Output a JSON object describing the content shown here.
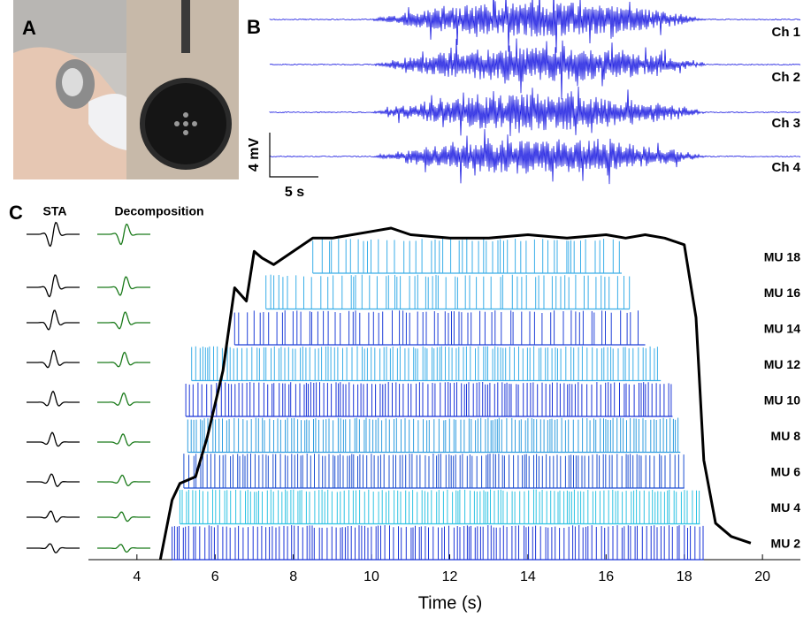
{
  "panel_labels": [
    "A",
    "B",
    "C"
  ],
  "panel_b": {
    "channels": [
      "Ch 1",
      "Ch 2",
      "Ch 3",
      "Ch 4"
    ],
    "scale_amplitude": "4 mV",
    "scale_time": "5 s"
  },
  "panel_c": {
    "sta_title": "STA",
    "decomposition_title": "Decomposition"
  },
  "chart_data": {
    "type": "line",
    "x_label": "Time (s)",
    "xlim": [
      2.76,
      20.97
    ],
    "xticks": [
      4,
      6,
      8,
      10,
      12,
      14,
      16,
      18,
      20
    ],
    "ylim": [
      0,
      100
    ],
    "force": {
      "color": "#000000",
      "x": [
        4.6,
        4.9,
        5.1,
        5.5,
        5.8,
        6.2,
        6.5,
        6.8,
        7.0,
        7.2,
        7.5,
        8,
        8.5,
        9,
        10,
        10.5,
        11,
        12,
        13,
        14,
        15,
        16,
        16.5,
        17,
        17.5,
        18,
        18.3,
        18.5,
        18.8,
        19.2,
        19.7
      ],
      "values": [
        0,
        18,
        23,
        25,
        37,
        57,
        82,
        78,
        93,
        91,
        89,
        93,
        97,
        97,
        99,
        100,
        98,
        97,
        97,
        98,
        97,
        98,
        97,
        98,
        97,
        95,
        73,
        30,
        11,
        7,
        5
      ]
    },
    "motor_units": [
      {
        "name": "MU 2",
        "color": "#1b35d8",
        "start": 4.9,
        "end": 18.5
      },
      {
        "name": "MU 4",
        "color": "#2ec3e3",
        "start": 5.1,
        "end": 18.4
      },
      {
        "name": "MU 6",
        "color": "#1d4fd2",
        "start": 5.2,
        "end": 18.0
      },
      {
        "name": "MU 8",
        "color": "#2f9de0",
        "start": 5.3,
        "end": 17.9
      },
      {
        "name": "MU 10",
        "color": "#1b35d8",
        "start": 5.25,
        "end": 17.7
      },
      {
        "name": "MU 12",
        "color": "#3aaee8",
        "start": 5.4,
        "end": 17.4
      },
      {
        "name": "MU 14",
        "color": "#2040d8",
        "start": 6.5,
        "end": 17.0
      },
      {
        "name": "MU 16",
        "color": "#3aaee8",
        "start": 7.3,
        "end": 16.6
      },
      {
        "name": "MU 18",
        "color": "#3aaee8",
        "start": 8.5,
        "end": 16.4
      }
    ]
  }
}
